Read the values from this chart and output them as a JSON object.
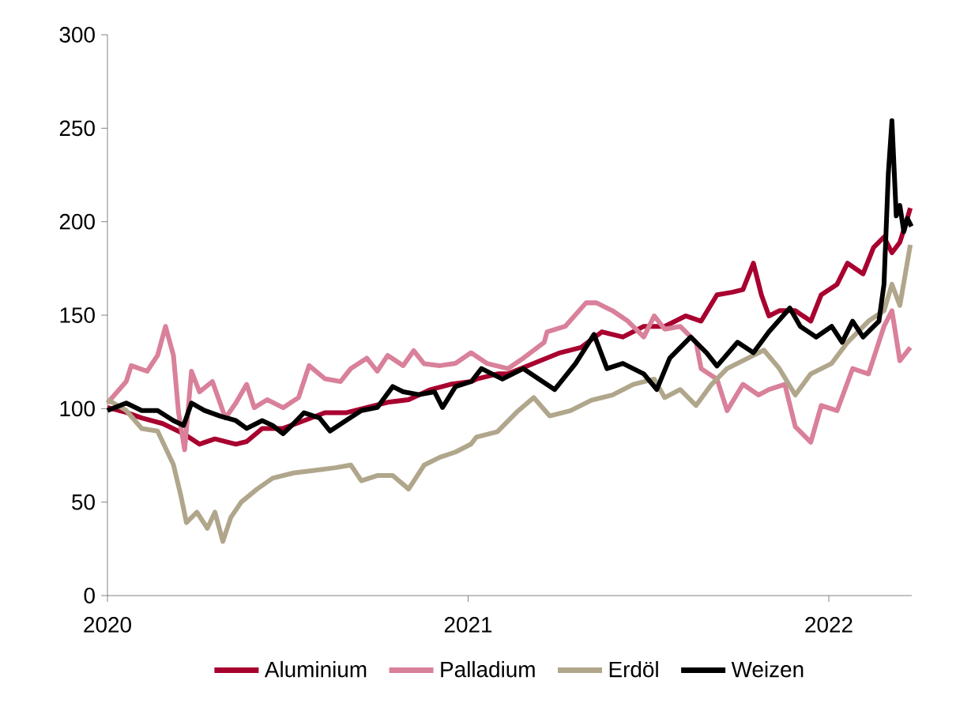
{
  "chart_data": {
    "type": "line",
    "xlim": [
      2020,
      2022.23
    ],
    "ylim": [
      0,
      300
    ],
    "xticks": [
      2020,
      2021,
      2022
    ],
    "yticks": [
      0,
      50,
      100,
      150,
      200,
      250,
      300
    ],
    "grid": false,
    "legend": "bottom",
    "line_style": "solid",
    "marker": "none",
    "series": [
      {
        "name": "Aluminium",
        "color": "#a8002f",
        "x": [
          2020.0,
          2020.052,
          2020.095,
          2020.153,
          2020.211,
          2020.255,
          2020.298,
          2020.356,
          2020.386,
          2020.429,
          2020.487,
          2020.545,
          2020.603,
          2020.661,
          2020.719,
          2020.777,
          2020.835,
          2020.893,
          2020.951,
          2021.009,
          2021.023,
          2021.081,
          2021.11,
          2021.182,
          2021.255,
          2021.313,
          2021.371,
          2021.429,
          2021.487,
          2021.545,
          2021.603,
          2021.646,
          2021.69,
          2021.733,
          2021.762,
          2021.791,
          2021.813,
          2021.834,
          2021.863,
          2021.907,
          2021.95,
          2021.979,
          2022.023,
          2022.052,
          2022.095,
          2022.124,
          2022.153,
          2022.175,
          2022.197,
          2022.211,
          2022.226
        ],
        "values": [
          100.6,
          98,
          95,
          92,
          86.6,
          81,
          83.8,
          81,
          82.4,
          89.4,
          89.4,
          93.6,
          97.8,
          97.8,
          100.6,
          103.4,
          104.8,
          110,
          113,
          114.5,
          115.8,
          118.6,
          118.6,
          124.2,
          129.9,
          132.7,
          141.1,
          138.3,
          144,
          144,
          149.6,
          146.8,
          160.9,
          162.3,
          163.7,
          177.8,
          160.9,
          149.6,
          152.4,
          152.4,
          146.8,
          160.9,
          166.5,
          177.8,
          172.1,
          186.2,
          191.8,
          183.4,
          189,
          197.5,
          207.3
        ]
      },
      {
        "name": "Palladium",
        "color": "#d9809a",
        "x": [
          2020.0,
          2020.052,
          2020.066,
          2020.11,
          2020.139,
          2020.161,
          2020.183,
          2020.197,
          2020.214,
          2020.233,
          2020.255,
          2020.291,
          2020.327,
          2020.356,
          2020.386,
          2020.407,
          2020.443,
          2020.487,
          2020.53,
          2020.559,
          2020.603,
          2020.646,
          2020.675,
          2020.719,
          2020.748,
          2020.777,
          2020.82,
          2020.849,
          2020.878,
          2020.922,
          2020.965,
          2021.008,
          2021.052,
          2021.11,
          2021.153,
          2021.211,
          2021.219,
          2021.269,
          2021.327,
          2021.356,
          2021.4,
          2021.443,
          2021.487,
          2021.516,
          2021.545,
          2021.588,
          2021.632,
          2021.646,
          2021.69,
          2021.718,
          2021.762,
          2021.805,
          2021.834,
          2021.878,
          2021.907,
          2021.95,
          2021.979,
          2022.023,
          2022.066,
          2022.11,
          2022.153,
          2022.175,
          2022.197,
          2022.226
        ],
        "values": [
          103,
          114.5,
          123,
          120,
          128.5,
          144,
          128.5,
          98,
          78,
          120,
          109,
          114.5,
          95,
          103,
          113,
          100.5,
          104.8,
          100.5,
          106,
          123,
          116,
          114.5,
          121.5,
          127,
          120,
          128.5,
          123,
          131,
          124,
          123,
          124.2,
          129.9,
          124.2,
          121.4,
          127,
          135.5,
          141.1,
          144,
          156.6,
          156.6,
          152.4,
          146.8,
          138.3,
          149.6,
          142.5,
          144,
          135.5,
          121.4,
          115.8,
          98.9,
          113,
          107.3,
          110.2,
          113,
          90.4,
          82,
          101.7,
          98.9,
          121.4,
          118.6,
          144,
          152.4,
          125.6,
          132.7
        ]
      },
      {
        "name": "Erdöl",
        "color": "#b0a68b",
        "x": [
          2020.0,
          2020.052,
          2020.095,
          2020.139,
          2020.183,
          2020.204,
          2020.219,
          2020.248,
          2020.277,
          2020.298,
          2020.32,
          2020.342,
          2020.371,
          2020.415,
          2020.458,
          2020.516,
          2020.574,
          2020.632,
          2020.675,
          2020.704,
          2020.748,
          2020.791,
          2020.835,
          2020.878,
          2020.922,
          2020.965,
          2021.008,
          2021.023,
          2021.081,
          2021.139,
          2021.182,
          2021.226,
          2021.284,
          2021.342,
          2021.4,
          2021.458,
          2021.516,
          2021.545,
          2021.588,
          2021.632,
          2021.675,
          2021.718,
          2021.776,
          2021.82,
          2021.863,
          2021.907,
          2021.95,
          2022.008,
          2022.052,
          2022.11,
          2022.153,
          2022.175,
          2022.197,
          2022.226
        ],
        "values": [
          104.8,
          99,
          89.4,
          88,
          70,
          53,
          39,
          44.6,
          36,
          44.6,
          29,
          41.8,
          50,
          57,
          62.8,
          65.6,
          67,
          68.4,
          69.8,
          61.4,
          64.2,
          64.2,
          57,
          69.8,
          74,
          76.8,
          81,
          84.8,
          87.6,
          98.9,
          105.9,
          96.1,
          98.9,
          104.5,
          107.3,
          113,
          115.8,
          105.9,
          110.2,
          101.7,
          113,
          121.4,
          127,
          131.3,
          121.4,
          107.3,
          118.6,
          124.2,
          135.5,
          146.8,
          152.4,
          166.5,
          155.2,
          187.6
        ]
      },
      {
        "name": "Weizen",
        "color": "#000000",
        "x": [
          2020.0,
          2020.052,
          2020.095,
          2020.139,
          2020.183,
          2020.211,
          2020.233,
          2020.269,
          2020.313,
          2020.356,
          2020.386,
          2020.429,
          2020.458,
          2020.487,
          2020.516,
          2020.545,
          2020.588,
          2020.617,
          2020.661,
          2020.704,
          2020.748,
          2020.791,
          2020.82,
          2020.864,
          2020.907,
          2020.929,
          2020.965,
          2021.009,
          2021.037,
          2021.095,
          2021.153,
          2021.24,
          2021.298,
          2021.349,
          2021.385,
          2021.429,
          2021.487,
          2021.523,
          2021.559,
          2021.617,
          2021.661,
          2021.69,
          2021.747,
          2021.791,
          2021.834,
          2021.892,
          2021.921,
          2021.965,
          2022.008,
          2022.037,
          2022.066,
          2022.095,
          2022.139,
          2022.153,
          2022.165,
          2022.175,
          2022.187,
          2022.197,
          2022.208,
          2022.218,
          2022.229
        ],
        "values": [
          99,
          103,
          99,
          99,
          93.6,
          91,
          103,
          99,
          96,
          93.6,
          89.4,
          93.6,
          91,
          86.6,
          92,
          97.8,
          95,
          88,
          93.6,
          99,
          100.6,
          111.8,
          109,
          107.5,
          109,
          100.6,
          111.8,
          114.5,
          121.4,
          115.8,
          121.4,
          110.2,
          124.2,
          139.7,
          121.4,
          124.2,
          118.6,
          110.2,
          127,
          138.3,
          129.9,
          122.8,
          135.5,
          129.9,
          141.1,
          153.8,
          144,
          138.3,
          144,
          135.5,
          146.8,
          138.3,
          146.8,
          166.5,
          225.6,
          254,
          203.1,
          208.7,
          194.7,
          201.7,
          197.5
        ]
      }
    ]
  }
}
